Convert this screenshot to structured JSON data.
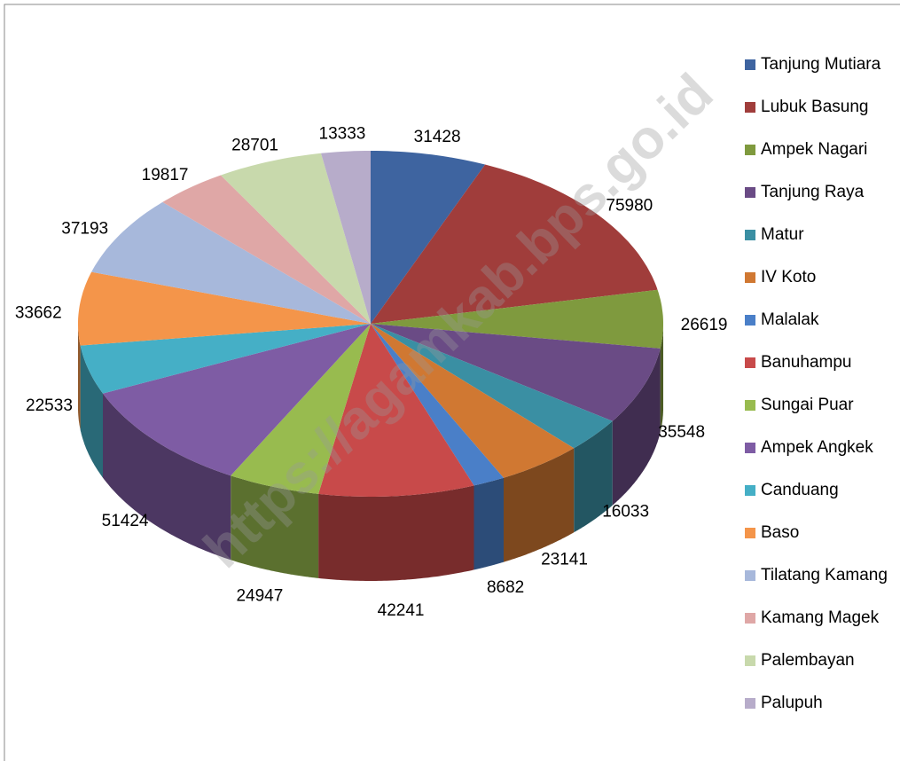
{
  "chart_data": {
    "type": "pie3d",
    "categories": [
      "Tanjung Mutiara",
      "Lubuk Basung",
      "Ampek Nagari",
      "Tanjung Raya",
      "Matur",
      "IV Koto",
      "Malalak",
      "Banuhampu",
      "Sungai Puar",
      "Ampek Angkek",
      "Canduang",
      "Baso",
      "Tilatang Kamang",
      "Kamang Magek",
      "Palembayan",
      "Palupuh"
    ],
    "values": [
      31428,
      75980,
      26619,
      35548,
      16033,
      23141,
      8682,
      42241,
      24947,
      51424,
      22533,
      33662,
      37193,
      19817,
      28701,
      13333
    ],
    "colors": [
      "#3e64a0",
      "#a03d3b",
      "#7f9a3e",
      "#6a4b85",
      "#3a8fa3",
      "#d07832",
      "#4a7fc8",
      "#c84a4a",
      "#98bb4f",
      "#7e5ca4",
      "#45afc6",
      "#f4954a",
      "#a7b8db",
      "#dfa7a6",
      "#c8d9ac",
      "#b7acca"
    ],
    "legend": "right",
    "watermark": "https://agamkab.bps.go.id"
  }
}
